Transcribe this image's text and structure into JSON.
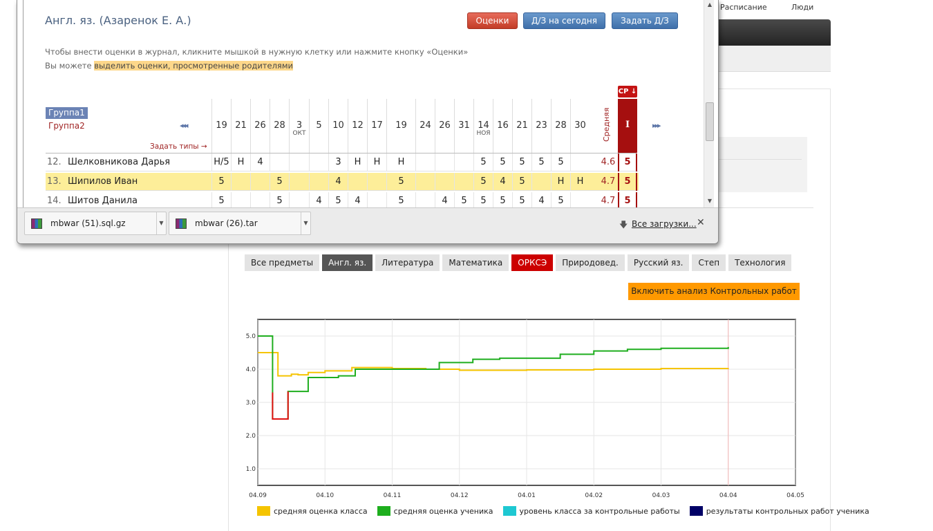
{
  "top_nav": {
    "schedule": "Расписание",
    "people": "Люди"
  },
  "journal": {
    "subject_title": "Англ. яз. (Азаренок Е. А.)",
    "buttons": {
      "grades": "Оценки",
      "hw_today": "Д/З на сегодня",
      "set_hw": "Задать Д/З"
    },
    "hint_line1": "Чтобы внести оценки в журнал, кликните мышкой в нужную клетку или нажмите кнопку «Оценки»",
    "hint_line2_prefix": "Вы можете ",
    "hint_line2_link": "выделить оценки, просмотренные родителями",
    "group1": "Группа1",
    "group2": "Группа2",
    "nav_prev": "◂◂◂",
    "nav_next": "▸▸▸",
    "set_types": "Задать типы →",
    "avg_label": "Средняя",
    "term_label": "I",
    "sr_button": "СР ↓",
    "dates": [
      {
        "day": "19",
        "month": ""
      },
      {
        "day": "21",
        "month": ""
      },
      {
        "day": "26",
        "month": ""
      },
      {
        "day": "28",
        "month": ""
      },
      {
        "day": "3",
        "month": "ОКТ"
      },
      {
        "day": "5",
        "month": ""
      },
      {
        "day": "10",
        "month": ""
      },
      {
        "day": "12",
        "month": ""
      },
      {
        "day": "17",
        "month": ""
      },
      {
        "day": "19",
        "month": ""
      },
      {
        "day": "24",
        "month": ""
      },
      {
        "day": "26",
        "month": ""
      },
      {
        "day": "31",
        "month": ""
      },
      {
        "day": "14",
        "month": "НОЯ"
      },
      {
        "day": "16",
        "month": ""
      },
      {
        "day": "21",
        "month": ""
      },
      {
        "day": "23",
        "month": ""
      },
      {
        "day": "28",
        "month": ""
      },
      {
        "day": "30",
        "month": ""
      }
    ],
    "students": [
      {
        "num": "12.",
        "name": "Шелковникова Дарья",
        "highlight": false,
        "grades": [
          "Н/5",
          "Н",
          "4",
          "",
          "",
          "",
          "3",
          "Н",
          "Н",
          "Н",
          "",
          "",
          "",
          "5",
          "5",
          "5",
          "5",
          "5",
          ""
        ],
        "avg": "4.6",
        "term": "5"
      },
      {
        "num": "13.",
        "name": "Шипилов Иван",
        "highlight": true,
        "grades": [
          "5",
          "",
          "",
          "5",
          "",
          "",
          "4",
          "",
          "",
          "5",
          "",
          "",
          "",
          "5",
          "4",
          "5",
          "",
          "Н",
          "Н"
        ],
        "avg": "4.7",
        "term": "5"
      },
      {
        "num": "14.",
        "name": "Шитов Данила",
        "highlight": false,
        "grades": [
          "5",
          "",
          "",
          "5",
          "",
          "4",
          "5",
          "4",
          "",
          "5",
          "",
          "4",
          "5",
          "5",
          "5",
          "5",
          "4",
          "5",
          ""
        ],
        "avg": "4.7",
        "term": "5"
      }
    ]
  },
  "downloads": {
    "items": [
      {
        "name": "mbwar (51).sql.gz"
      },
      {
        "name": "mbwar (26).tar"
      }
    ],
    "all_label": "Все загрузки..."
  },
  "tabs": [
    {
      "label": "Все предметы",
      "state": "normal"
    },
    {
      "label": "Англ. яз.",
      "state": "active"
    },
    {
      "label": "Литература",
      "state": "normal"
    },
    {
      "label": "Математика",
      "state": "normal"
    },
    {
      "label": "ОРКСЭ",
      "state": "red"
    },
    {
      "label": "Природовед.",
      "state": "normal"
    },
    {
      "label": "Русский яз.",
      "state": "normal"
    },
    {
      "label": "Степ",
      "state": "normal"
    },
    {
      "label": "Технология",
      "state": "normal"
    }
  ],
  "analysis_button": "Включить анализ Контрольных работ",
  "colors": {
    "class_avg": "#f5c400",
    "student_avg": "#1eae1e",
    "class_level_tests": "#1ec8d2",
    "student_tests": "#000066",
    "drop_red": "#e01010",
    "tab_red": "#cc0000",
    "orange": "#ff9900"
  },
  "chart_data": {
    "type": "line",
    "x_tick_labels": [
      "04.09",
      "04.10",
      "04.11",
      "04.12",
      "04.01",
      "04.02",
      "04.03",
      "04.04",
      "04.05"
    ],
    "y_ticks": [
      1.0,
      2.0,
      3.0,
      4.0,
      5.0
    ],
    "y_tick_labels": [
      "1.0",
      "2.0",
      "3.0",
      "4.0",
      "5.0"
    ],
    "ylim": [
      0.5,
      5.5
    ],
    "xlim_months": [
      0,
      8
    ],
    "grid": true,
    "legend_position": "bottom",
    "series": [
      {
        "name": "средняя оценка класса",
        "color": "#f5c400",
        "points": [
          [
            0,
            4.5
          ],
          [
            0.2,
            4.5
          ],
          [
            0.3,
            3.8
          ],
          [
            0.45,
            3.8
          ],
          [
            0.5,
            3.85
          ],
          [
            0.6,
            3.83
          ],
          [
            0.75,
            3.9
          ],
          [
            1.0,
            3.95
          ],
          [
            1.4,
            4.05
          ],
          [
            2.0,
            4.02
          ],
          [
            2.5,
            4.0
          ],
          [
            3.0,
            3.97
          ],
          [
            4.0,
            3.98
          ],
          [
            5.0,
            4.0
          ],
          [
            6.0,
            4.02
          ],
          [
            7.0,
            4.03
          ]
        ]
      },
      {
        "name": "средняя оценка ученика",
        "color": "#1eae1e",
        "points": [
          [
            0,
            5.0
          ],
          [
            0.22,
            5.0
          ],
          [
            0.22,
            3.5
          ],
          [
            0.22,
            2.5
          ],
          [
            0.45,
            2.5
          ],
          [
            0.45,
            3.33
          ],
          [
            0.75,
            3.33
          ],
          [
            0.75,
            3.75
          ],
          [
            1.2,
            3.8
          ],
          [
            1.45,
            4.0
          ],
          [
            2.2,
            4.0
          ],
          [
            2.7,
            4.2
          ],
          [
            3.2,
            4.3
          ],
          [
            3.6,
            4.33
          ],
          [
            4.2,
            4.33
          ],
          [
            4.5,
            4.45
          ],
          [
            5.0,
            4.55
          ],
          [
            5.5,
            4.6
          ],
          [
            6.0,
            4.63
          ],
          [
            7.0,
            4.67
          ]
        ]
      },
      {
        "name": "уровень класса за контрольные работы",
        "color": "#1ec8d2",
        "points": []
      },
      {
        "name": "результаты контрольных работ ученика",
        "color": "#000066",
        "points": []
      }
    ],
    "red_segment": {
      "from": [
        0.22,
        2.5
      ],
      "to": [
        0.45,
        2.5
      ]
    },
    "current_marker_x": 7.0
  }
}
